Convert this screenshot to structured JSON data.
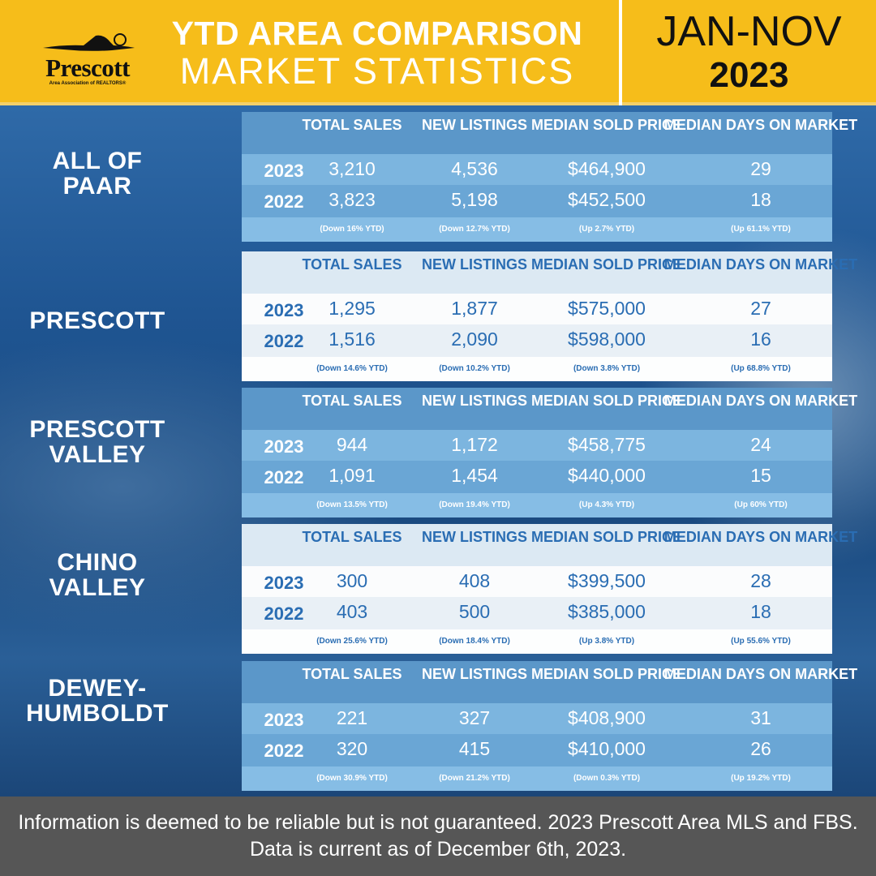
{
  "header": {
    "logo_name": "Prescott",
    "logo_sub": "Area Association of REALTORS®",
    "title_line1": "YTD AREA COMPARISON",
    "title_line2": "MARKET STATISTICS",
    "period": "JAN-NOV",
    "year": "2023"
  },
  "columns": {
    "sales": "TOTAL SALES",
    "listings": "NEW LISTINGS",
    "price": "MEDIAN SOLD PRICE",
    "days": "MEDIAN DAYS ON MARKET"
  },
  "areas": [
    {
      "name": "ALL OF PAAR",
      "style": "blue",
      "rows": [
        {
          "year": "2023",
          "sales": "3,210",
          "listings": "4,536",
          "price": "$464,900",
          "days": "29"
        },
        {
          "year": "2022",
          "sales": "3,823",
          "listings": "5,198",
          "price": "$452,500",
          "days": "18"
        }
      ],
      "changes": {
        "sales": "(Down 16% YTD)",
        "listings": "(Down 12.7% YTD)",
        "price": "(Up 2.7% YTD)",
        "days": "(Up 61.1% YTD)"
      }
    },
    {
      "name": "PRESCOTT",
      "style": "light",
      "rows": [
        {
          "year": "2023",
          "sales": "1,295",
          "listings": "1,877",
          "price": "$575,000",
          "days": "27"
        },
        {
          "year": "2022",
          "sales": "1,516",
          "listings": "2,090",
          "price": "$598,000",
          "days": "16"
        }
      ],
      "changes": {
        "sales": "(Down 14.6% YTD)",
        "listings": "(Down 10.2% YTD)",
        "price": "(Down 3.8% YTD)",
        "days": "(Up 68.8% YTD)"
      }
    },
    {
      "name": "PRESCOTT VALLEY",
      "style": "blue",
      "rows": [
        {
          "year": "2023",
          "sales": "944",
          "listings": "1,172",
          "price": "$458,775",
          "days": "24"
        },
        {
          "year": "2022",
          "sales": "1,091",
          "listings": "1,454",
          "price": "$440,000",
          "days": "15"
        }
      ],
      "changes": {
        "sales": "(Down 13.5% YTD)",
        "listings": "(Down 19.4% YTD)",
        "price": "(Up 4.3% YTD)",
        "days": "(Up 60% YTD)"
      }
    },
    {
      "name": "CHINO VALLEY",
      "style": "light",
      "rows": [
        {
          "year": "2023",
          "sales": "300",
          "listings": "408",
          "price": "$399,500",
          "days": "28"
        },
        {
          "year": "2022",
          "sales": "403",
          "listings": "500",
          "price": "$385,000",
          "days": "18"
        }
      ],
      "changes": {
        "sales": "(Down 25.6% YTD)",
        "listings": "(Down 18.4% YTD)",
        "price": "(Up 3.8% YTD)",
        "days": "(Up 55.6% YTD)"
      }
    },
    {
      "name": "DEWEY-HUMBOLDT",
      "style": "blue",
      "rows": [
        {
          "year": "2023",
          "sales": "221",
          "listings": "327",
          "price": "$408,900",
          "days": "31"
        },
        {
          "year": "2022",
          "sales": "320",
          "listings": "415",
          "price": "$410,000",
          "days": "26"
        }
      ],
      "changes": {
        "sales": "(Down 30.9% YTD)",
        "listings": "(Down 21.2% YTD)",
        "price": "(Down 0.3% YTD)",
        "days": "(Up 19.2% YTD)"
      }
    }
  ],
  "footer": {
    "text": "Information is deemed to be reliable but is not guaranteed. 2023 Prescott Area MLS and FBS. Data is current as of December 6th, 2023."
  },
  "colors": {
    "header_bg": "#f6bd1a",
    "background": "#1c4f8c",
    "footer_bg": "#565656",
    "light_text": "#2a6db3"
  }
}
